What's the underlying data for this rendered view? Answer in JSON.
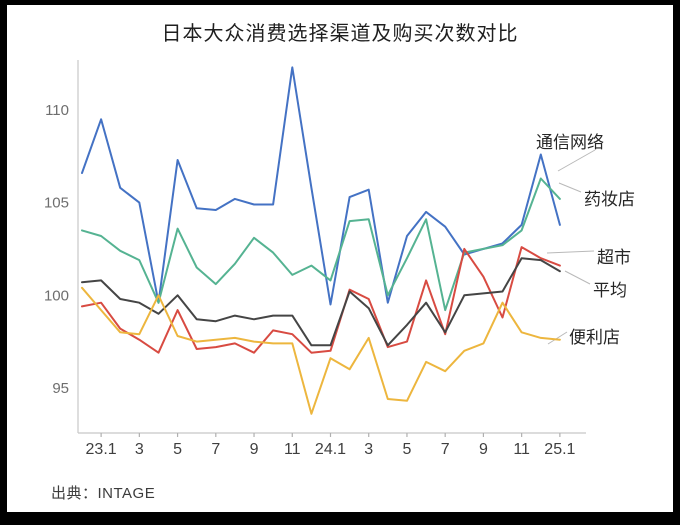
{
  "title": "日本大众消费选择渠道及购买次数对比",
  "source": "出典：INTAGE",
  "colors": {
    "frame_background": "#000000",
    "slide_background": "#ffffff",
    "axis_line": "#c8c8c8",
    "tick_mark": "#b0b0b0",
    "x_tick_text": "#3f3f3f",
    "y_tick_text": "#6e6e6e",
    "leader_line": "#b9b9b9",
    "title_text": "#1f1f1f",
    "source_text": "#3c3c3c"
  },
  "chart_data": {
    "type": "line",
    "title": "日本大众消费选择渠道及购买次数对比",
    "xlabel": "",
    "ylabel": "",
    "points_per_series": 26,
    "x_tick_labels": [
      "23.1",
      "3",
      "5",
      "7",
      "9",
      "11",
      "24.1",
      "3",
      "5",
      "7",
      "9",
      "11",
      "25.1"
    ],
    "x_tick_indices": [
      1,
      3,
      5,
      7,
      9,
      11,
      13,
      15,
      17,
      19,
      21,
      23,
      25
    ],
    "y_ticks": [
      95,
      100,
      105,
      110
    ],
    "ylim": [
      92.5,
      113
    ],
    "grid": false,
    "legend_position": "direct-labels-right",
    "series": [
      {
        "name": "通信网络",
        "color": "#4472C4",
        "values": [
          106.6,
          109.5,
          105.8,
          105.0,
          99.6,
          107.3,
          104.7,
          104.6,
          105.2,
          104.9,
          104.9,
          112.3,
          105.8,
          99.5,
          105.3,
          105.7,
          99.6,
          103.2,
          104.5,
          103.7,
          102.2,
          102.5,
          102.8,
          103.8,
          107.6,
          103.8
        ]
      },
      {
        "name": "药妆店",
        "color": "#55B392",
        "values": [
          103.5,
          103.2,
          102.4,
          101.9,
          99.6,
          103.6,
          101.5,
          100.6,
          101.7,
          103.1,
          102.3,
          101.1,
          101.6,
          100.8,
          104.0,
          104.1,
          100.0,
          102.0,
          104.1,
          99.2,
          102.3,
          102.5,
          102.7,
          103.5,
          106.3,
          105.2
        ]
      },
      {
        "name": "超市",
        "color": "#D84B42",
        "values": [
          99.4,
          99.6,
          98.2,
          97.6,
          96.9,
          99.2,
          97.1,
          97.2,
          97.4,
          96.9,
          98.1,
          97.9,
          96.9,
          97.0,
          100.3,
          99.8,
          97.2,
          97.5,
          100.8,
          97.9,
          102.5,
          101.0,
          98.8,
          102.6,
          102.0,
          101.6
        ]
      },
      {
        "name": "平均",
        "color": "#454545",
        "values": [
          100.7,
          100.8,
          99.8,
          99.6,
          99.0,
          100.0,
          98.7,
          98.6,
          98.9,
          98.7,
          98.9,
          98.9,
          97.3,
          97.3,
          100.2,
          99.3,
          97.3,
          98.4,
          99.6,
          98.0,
          100.0,
          100.1,
          100.2,
          102.0,
          101.9,
          101.3
        ]
      },
      {
        "name": "便利店",
        "color": "#EDB63E",
        "values": [
          100.4,
          99.2,
          98.0,
          97.9,
          100.0,
          97.8,
          97.5,
          97.6,
          97.7,
          97.5,
          97.4,
          97.4,
          93.6,
          96.6,
          96.0,
          97.7,
          94.4,
          94.3,
          96.4,
          95.9,
          97.0,
          97.4,
          99.6,
          98.0,
          97.7,
          97.6
        ]
      }
    ]
  }
}
